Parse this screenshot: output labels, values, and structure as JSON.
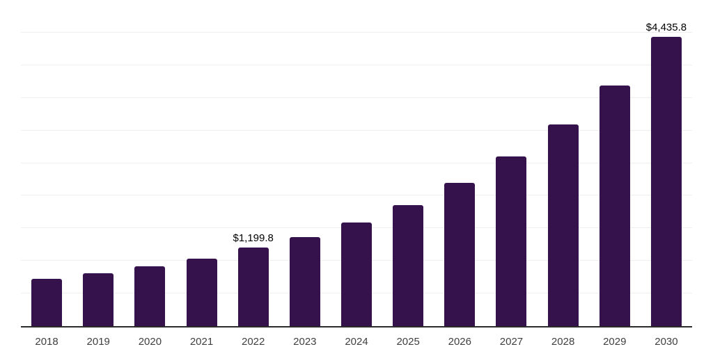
{
  "chart_data": {
    "type": "bar",
    "categories": [
      "2018",
      "2019",
      "2020",
      "2021",
      "2022",
      "2023",
      "2024",
      "2025",
      "2026",
      "2027",
      "2028",
      "2029",
      "2030"
    ],
    "values": [
      720,
      815,
      915,
      1030,
      1199.8,
      1360,
      1585,
      1860,
      2195,
      2600,
      3090,
      3690,
      4435.8
    ],
    "value_labels": [
      "",
      "",
      "",
      "",
      "$1,199.8",
      "",
      "",
      "",
      "",
      "",
      "",
      "",
      "$4,435.8"
    ],
    "ylim": [
      0,
      5000
    ],
    "gridline_step": 500,
    "grid": true,
    "legend": "none",
    "colors": {
      "bar": "#35124b",
      "axis_line": "#2b2b2b",
      "gridline": "#efefef",
      "tick_label": "#404040",
      "data_label": "#000000",
      "background": "#ffffff"
    }
  }
}
